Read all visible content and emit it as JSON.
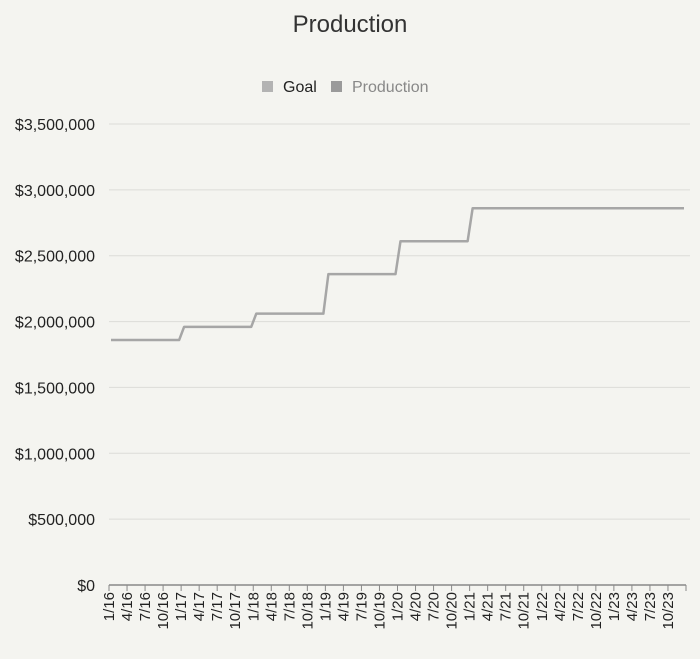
{
  "colors": {
    "background": "#f4f4f0",
    "line": "#a6a6a6",
    "grid": "#dcdcd8",
    "axis": "#888888",
    "goal_swatch": "#b3b3b3",
    "production_swatch": "#9a9a9a",
    "title_text": "#333333",
    "legend_goal_text": "#222222",
    "legend_production_text": "#888888"
  },
  "chart_data": {
    "type": "line",
    "title": "Production",
    "xlabel": "",
    "ylabel": "",
    "ylim": [
      0,
      3500000
    ],
    "grid": true,
    "legend_position": "top",
    "legend": [
      {
        "name": "Goal"
      },
      {
        "name": "Production"
      }
    ],
    "y_ticks": [
      0,
      500000,
      1000000,
      1500000,
      2000000,
      2500000,
      3000000,
      3500000
    ],
    "y_tick_labels": [
      "$0",
      "$500,000",
      "$1,000,000",
      "$1,500,000",
      "$2,000,000",
      "$2,500,000",
      "$3,000,000",
      "$3,500,000"
    ],
    "x_tick_labels": [
      "1/16",
      "4/16",
      "7/16",
      "10/16",
      "1/17",
      "4/17",
      "7/17",
      "10/17",
      "1/18",
      "4/18",
      "7/18",
      "10/18",
      "1/19",
      "4/19",
      "7/19",
      "10/19",
      "1/20",
      "4/20",
      "7/20",
      "10/20",
      "1/21",
      "4/21",
      "7/21",
      "10/21",
      "1/22",
      "4/22",
      "7/22",
      "10/22",
      "1/23",
      "4/23",
      "7/23",
      "10/23"
    ],
    "series": [
      {
        "name": "Goal",
        "x": [
          "1/16",
          "4/16",
          "7/16",
          "10/16",
          "1/17",
          "4/17",
          "7/17",
          "10/17",
          "1/18",
          "4/18",
          "7/18",
          "10/18",
          "1/19",
          "4/19",
          "7/19",
          "10/19",
          "1/20",
          "4/20",
          "7/20",
          "10/20",
          "1/21",
          "4/21",
          "7/21",
          "10/21",
          "1/22",
          "4/22",
          "7/22",
          "10/22",
          "1/23",
          "4/23",
          "7/23",
          "10/23"
        ],
        "values": [
          1860000,
          1860000,
          1860000,
          1860000,
          1960000,
          1960000,
          1960000,
          1960000,
          2060000,
          2060000,
          2060000,
          2060000,
          2360000,
          2360000,
          2360000,
          2360000,
          2610000,
          2610000,
          2610000,
          2610000,
          2860000,
          2860000,
          2860000,
          2860000,
          2860000,
          2860000,
          2860000,
          2860000,
          2860000,
          2860000,
          2860000,
          2860000
        ]
      }
    ]
  }
}
